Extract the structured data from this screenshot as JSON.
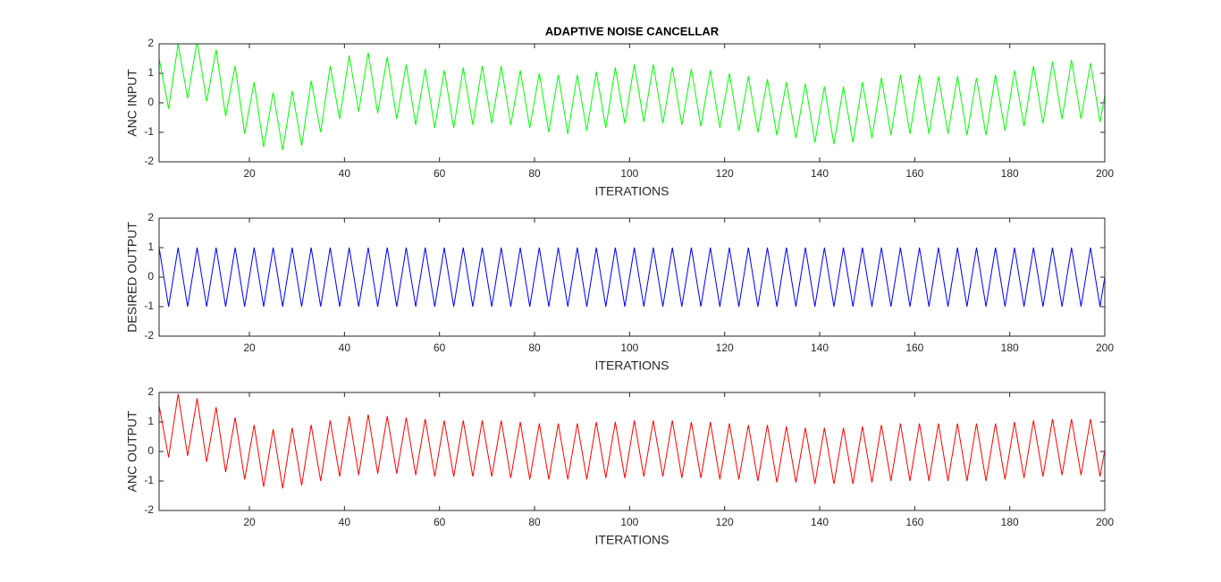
{
  "chart_data": [
    {
      "type": "line",
      "title": "ADAPTIVE NOISE CANCELLAR",
      "xlabel": "ITERATIONS",
      "ylabel": "ANC INPUT",
      "color": "#00ff00",
      "x": [
        1,
        3,
        5,
        7,
        9,
        11,
        13,
        15,
        17,
        19,
        21,
        23,
        25,
        27,
        29,
        31,
        33,
        35,
        37,
        39,
        41,
        43,
        45,
        47,
        49,
        51,
        53,
        55,
        57,
        59,
        61,
        63,
        65,
        67,
        69,
        71,
        73,
        75,
        77,
        79,
        81,
        83,
        85,
        87,
        89,
        91,
        93,
        95,
        97,
        99,
        101,
        103,
        105,
        107,
        109,
        111,
        113,
        115,
        117,
        119,
        121,
        123,
        125,
        127,
        129,
        131,
        133,
        135,
        137,
        139,
        141,
        143,
        145,
        147,
        149,
        151,
        153,
        155,
        157,
        159,
        161,
        163,
        165,
        167,
        169,
        171,
        173,
        175,
        177,
        179,
        181,
        183,
        185,
        187,
        189,
        191,
        193,
        195,
        197,
        199,
        200
      ],
      "values": [
        1.5,
        -0.2,
        2.0,
        0.15,
        2.1,
        0.05,
        1.8,
        -0.45,
        1.25,
        -1.05,
        0.7,
        -1.5,
        0.35,
        -1.6,
        0.4,
        -1.45,
        0.75,
        -1.0,
        1.25,
        -0.55,
        1.6,
        -0.3,
        1.7,
        -0.35,
        1.55,
        -0.55,
        1.3,
        -0.75,
        1.15,
        -0.85,
        1.1,
        -0.85,
        1.2,
        -0.75,
        1.25,
        -0.7,
        1.25,
        -0.75,
        1.1,
        -0.85,
        1.0,
        -1.0,
        0.95,
        -1.05,
        0.95,
        -0.95,
        1.05,
        -0.85,
        1.2,
        -0.7,
        1.3,
        -0.65,
        1.3,
        -0.7,
        1.2,
        -0.75,
        1.15,
        -0.8,
        1.1,
        -0.85,
        1.0,
        -0.95,
        0.9,
        -1.0,
        0.8,
        -1.1,
        0.7,
        -1.2,
        0.65,
        -1.35,
        0.55,
        -1.4,
        0.55,
        -1.35,
        0.7,
        -1.2,
        0.85,
        -1.1,
        0.95,
        -1.05,
        0.95,
        -1.05,
        0.9,
        -1.05,
        0.9,
        -1.1,
        0.85,
        -1.1,
        0.95,
        -0.95,
        1.1,
        -0.8,
        1.25,
        -0.7,
        1.4,
        -0.55,
        1.45,
        -0.55,
        1.35,
        -0.65,
        0.25
      ],
      "xlim": [
        1,
        200
      ],
      "xticks": [
        20,
        40,
        60,
        80,
        100,
        120,
        140,
        160,
        180,
        200
      ],
      "ylim": [
        -2,
        2
      ],
      "yticks": [
        -2,
        -1,
        0,
        1,
        2
      ]
    },
    {
      "type": "line",
      "xlabel": "ITERATIONS",
      "ylabel": "DESIRED OUTPUT",
      "color": "#0000ff",
      "x": [
        1,
        3,
        5,
        7,
        9,
        11,
        13,
        15,
        17,
        19,
        21,
        23,
        25,
        27,
        29,
        31,
        33,
        35,
        37,
        39,
        41,
        43,
        45,
        47,
        49,
        51,
        53,
        55,
        57,
        59,
        61,
        63,
        65,
        67,
        69,
        71,
        73,
        75,
        77,
        79,
        81,
        83,
        85,
        87,
        89,
        91,
        93,
        95,
        97,
        99,
        101,
        103,
        105,
        107,
        109,
        111,
        113,
        115,
        117,
        119,
        121,
        123,
        125,
        127,
        129,
        131,
        133,
        135,
        137,
        139,
        141,
        143,
        145,
        147,
        149,
        151,
        153,
        155,
        157,
        159,
        161,
        163,
        165,
        167,
        169,
        171,
        173,
        175,
        177,
        179,
        181,
        183,
        185,
        187,
        189,
        191,
        193,
        195,
        197,
        199,
        200
      ],
      "values": [
        1,
        -1,
        1,
        -1,
        1,
        -1,
        1,
        -1,
        1,
        -1,
        1,
        -1,
        1,
        -1,
        1,
        -1,
        1,
        -1,
        1,
        -1,
        1,
        -1,
        1,
        -1,
        1,
        -1,
        1,
        -1,
        1,
        -1,
        1,
        -1,
        1,
        -1,
        1,
        -1,
        1,
        -1,
        1,
        -1,
        1,
        -1,
        1,
        -1,
        1,
        -1,
        1,
        -1,
        1,
        -1,
        1,
        -1,
        1,
        -1,
        1,
        -1,
        1,
        -1,
        1,
        -1,
        1,
        -1,
        1,
        -1,
        1,
        -1,
        1,
        -1,
        1,
        -1,
        1,
        -1,
        1,
        -1,
        1,
        -1,
        1,
        -1,
        1,
        -1,
        1,
        -1,
        1,
        -1,
        1,
        -1,
        1,
        -1,
        1,
        -1,
        1,
        -1,
        1,
        -1,
        1,
        -1,
        1,
        -1,
        1,
        -1,
        0
      ],
      "xlim": [
        1,
        200
      ],
      "xticks": [
        20,
        40,
        60,
        80,
        100,
        120,
        140,
        160,
        180,
        200
      ],
      "ylim": [
        -2,
        2
      ],
      "yticks": [
        -2,
        -1,
        0,
        1,
        2
      ]
    },
    {
      "type": "line",
      "xlabel": "ITERATIONS",
      "ylabel": "ANC OUTPUT",
      "color": "#ff0000",
      "x": [
        1,
        3,
        5,
        7,
        9,
        11,
        13,
        15,
        17,
        19,
        21,
        23,
        25,
        27,
        29,
        31,
        33,
        35,
        37,
        39,
        41,
        43,
        45,
        47,
        49,
        51,
        53,
        55,
        57,
        59,
        61,
        63,
        65,
        67,
        69,
        71,
        73,
        75,
        77,
        79,
        81,
        83,
        85,
        87,
        89,
        91,
        93,
        95,
        97,
        99,
        101,
        103,
        105,
        107,
        109,
        111,
        113,
        115,
        117,
        119,
        121,
        123,
        125,
        127,
        129,
        131,
        133,
        135,
        137,
        139,
        141,
        143,
        145,
        147,
        149,
        151,
        153,
        155,
        157,
        159,
        161,
        163,
        165,
        167,
        169,
        171,
        173,
        175,
        177,
        179,
        181,
        183,
        185,
        187,
        189,
        191,
        193,
        195,
        197,
        199,
        200
      ],
      "values": [
        1.55,
        -0.2,
        1.95,
        -0.15,
        1.8,
        -0.35,
        1.5,
        -0.7,
        1.15,
        -0.95,
        0.9,
        -1.2,
        0.75,
        -1.25,
        0.8,
        -1.15,
        0.9,
        -1.0,
        1.05,
        -0.85,
        1.2,
        -0.8,
        1.25,
        -0.75,
        1.2,
        -0.75,
        1.15,
        -0.8,
        1.1,
        -0.85,
        1.05,
        -0.85,
        1.05,
        -0.85,
        1.05,
        -0.85,
        1.05,
        -0.9,
        1.0,
        -0.95,
        0.95,
        -0.95,
        0.95,
        -0.95,
        0.95,
        -0.95,
        1.0,
        -0.9,
        1.0,
        -0.9,
        1.05,
        -0.85,
        1.05,
        -0.85,
        1.05,
        -0.9,
        1.0,
        -0.9,
        1.0,
        -0.95,
        0.95,
        -0.95,
        0.9,
        -1.0,
        0.9,
        -1.05,
        0.85,
        -1.05,
        0.8,
        -1.1,
        0.8,
        -1.1,
        0.8,
        -1.1,
        0.85,
        -1.05,
        0.9,
        -1.0,
        0.95,
        -1.0,
        0.95,
        -1.0,
        0.95,
        -1.0,
        0.95,
        -1.0,
        0.95,
        -1.0,
        0.95,
        -0.95,
        1.0,
        -0.9,
        1.05,
        -0.85,
        1.1,
        -0.8,
        1.1,
        -0.8,
        1.1,
        -0.85,
        0.05
      ],
      "xlim": [
        1,
        200
      ],
      "xticks": [
        20,
        40,
        60,
        80,
        100,
        120,
        140,
        160,
        180,
        200
      ],
      "ylim": [
        -2,
        2
      ],
      "yticks": [
        -2,
        -1,
        0,
        1,
        2
      ]
    }
  ]
}
